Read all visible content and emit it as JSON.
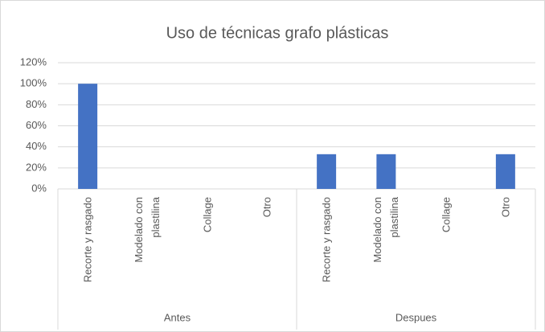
{
  "chart_data": {
    "type": "bar",
    "title": "Uso de técnicas grafo plásticas",
    "categories": [
      "Recorte y rasgado",
      "Modelado con plastilina",
      "Collage",
      "Otro",
      "Recorte y rasgado",
      "Modelado con plastilina",
      "Collage",
      "Otro"
    ],
    "groups": [
      "Antes",
      "Despues"
    ],
    "values": [
      100,
      0,
      0,
      0,
      33,
      33,
      0,
      33
    ],
    "color": "#4472c4",
    "ylim": [
      0,
      120
    ],
    "yticks": [
      {
        "value": 0,
        "label": "0%"
      },
      {
        "value": 20,
        "label": "20%"
      },
      {
        "value": 40,
        "label": "40%"
      },
      {
        "value": 60,
        "label": "60%"
      },
      {
        "value": 80,
        "label": "80%"
      },
      {
        "value": 100,
        "label": "100%"
      },
      {
        "value": 120,
        "label": "120%"
      }
    ],
    "grid": true
  }
}
